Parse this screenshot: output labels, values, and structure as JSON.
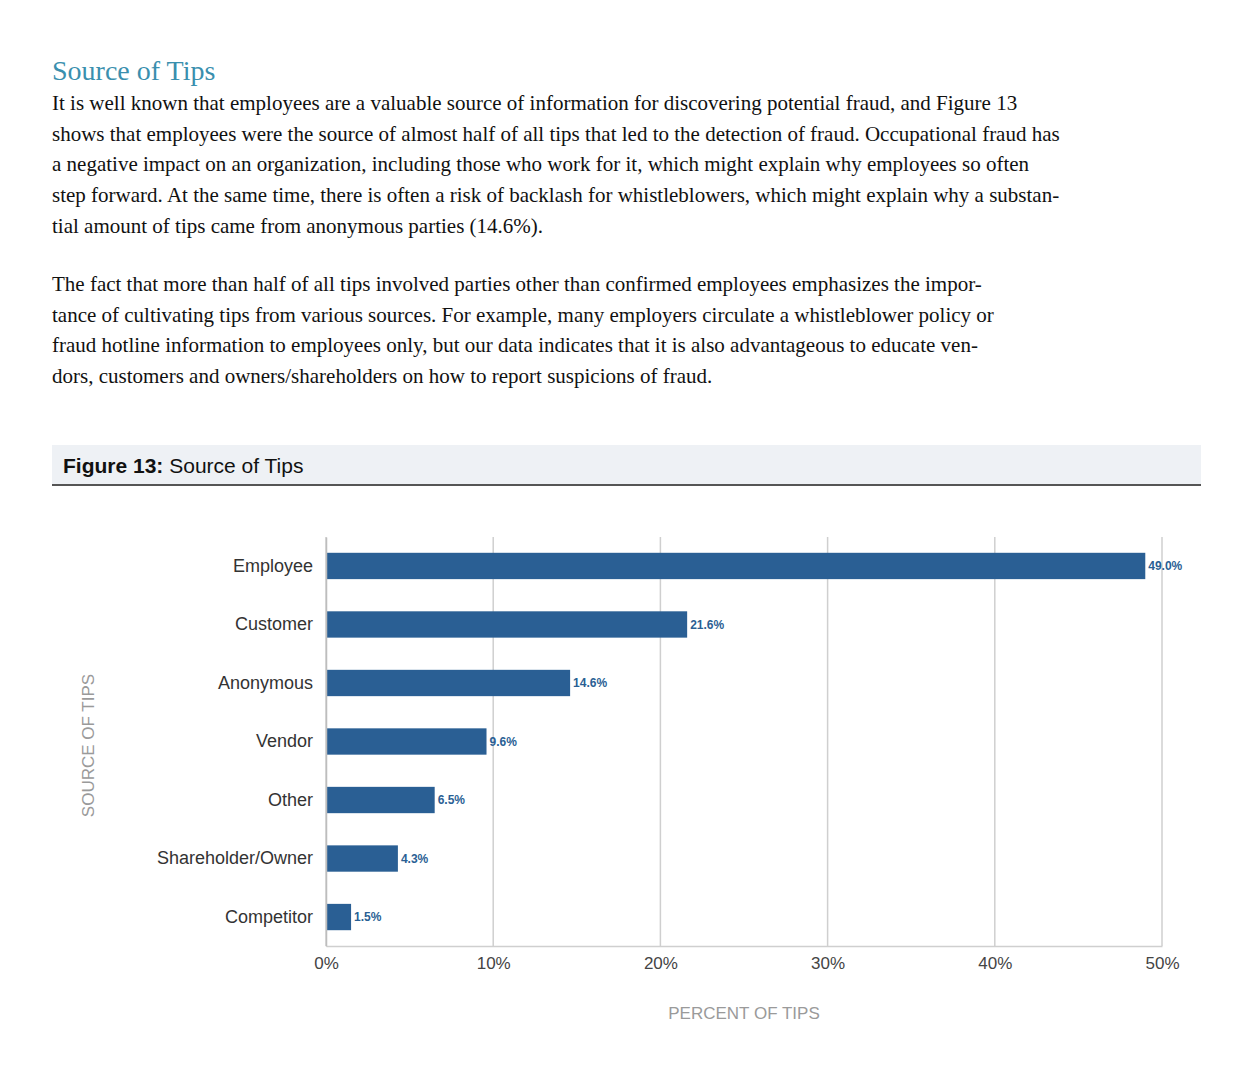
{
  "heading": "Source of Tips",
  "paragraphs": [
    [
      "It is well known that employees are a valuable source of information for discovering potential fraud, and Figure 13",
      "shows that employees were the source of almost half of all tips that led to the detection of fraud. Occupational fraud has",
      "a negative impact on an organization, including those who work for it, which might explain why employees so often",
      "step forward. At the same time, there is often a risk of backlash for whistleblowers, which might explain why a substan-",
      "tial amount of tips came from anonymous parties (14.6%)."
    ],
    [
      "The fact that more than half of all tips involved parties other than confirmed employees emphasizes the impor-",
      "tance of cultivating tips from various sources. For example, many employers circulate a whistleblower policy or",
      "fraud hotline information to employees only, but our data indicates that it is also advantageous to educate ven-",
      "dors, customers and owners/shareholders on how to report suspicions of fraud."
    ]
  ],
  "chart_data": {
    "type": "bar",
    "title": "Figure 13: Source of Tips",
    "orientation": "horizontal",
    "categories": [
      "Employee",
      "Customer",
      "Anonymous",
      "Vendor",
      "Other",
      "Shareholder/Owner",
      "Competitor"
    ],
    "values": [
      49.0,
      21.6,
      14.6,
      9.6,
      6.5,
      4.3,
      1.5
    ],
    "value_labels": [
      "49.0%",
      "21.6%",
      "14.6%",
      "9.6%",
      "6.5%",
      "4.3%",
      "1.5%"
    ],
    "data_labels": true,
    "color": "#2a5f94",
    "xlabel": "PERCENT OF TIPS",
    "ylabel": "SOURCE OF TIPS",
    "xlim": [
      0,
      50
    ],
    "xticks": [
      {
        "value": 0,
        "label": "0%"
      },
      {
        "value": 10,
        "label": "10%"
      },
      {
        "value": 20,
        "label": "20%"
      },
      {
        "value": 30,
        "label": "30%"
      },
      {
        "value": 40,
        "label": "40%"
      },
      {
        "value": 50,
        "label": "50%"
      }
    ],
    "grid": true
  }
}
